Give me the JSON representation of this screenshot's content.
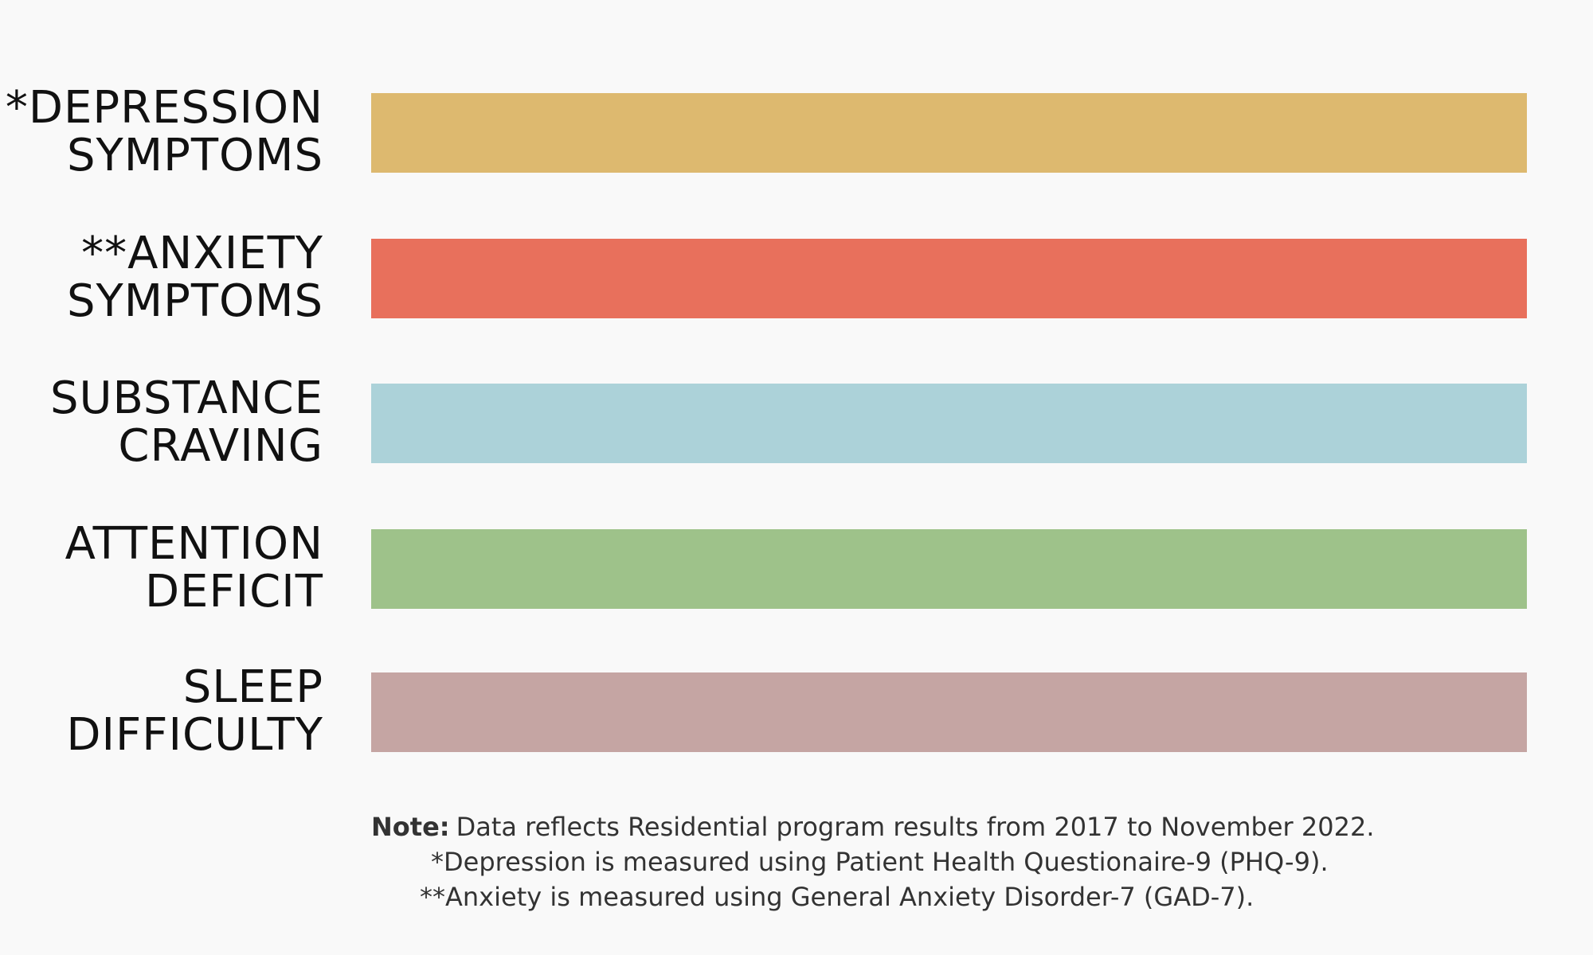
{
  "items": [
    {
      "label": [
        "*DEPRESSION",
        "SYMPTOMS"
      ],
      "color": "#ddb96f"
    },
    {
      "label": [
        "**ANXIETY",
        "SYMPTOMS"
      ],
      "color": "#e8705c"
    },
    {
      "label": [
        "SUBSTANCE",
        "CRAVING"
      ],
      "color": "#acd2d9"
    },
    {
      "label": [
        "ATTENTION",
        "DEFICIT"
      ],
      "color": "#9ec28a"
    },
    {
      "label": [
        "SLEEP",
        "DIFFICULTY"
      ],
      "color": "#c5a5a3"
    }
  ],
  "note": {
    "heading": "Note:",
    "lines": [
      "Data reflects Residential program results from 2017 to November 2022.",
      "*Depression is measured using Patient Health Questionaire-9 (PHQ-9).",
      "**Anxiety is measured using General Anxiety Disorder-7 (GAD-7)."
    ]
  }
}
